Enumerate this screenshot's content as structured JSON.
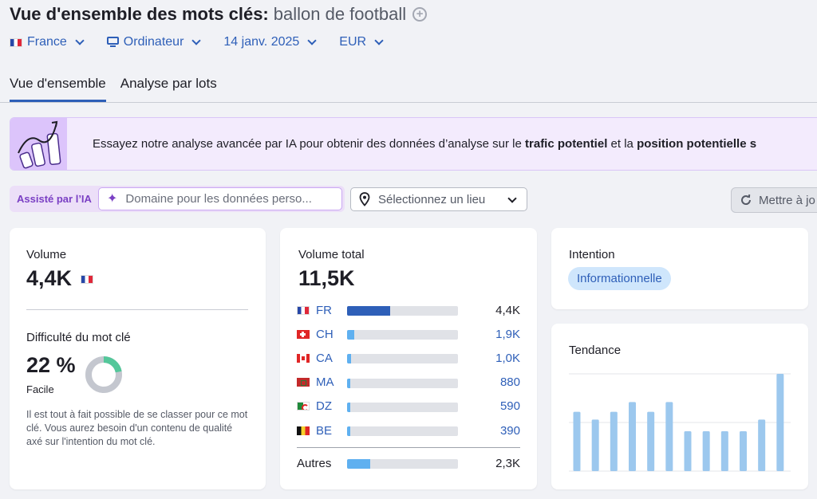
{
  "header": {
    "title": "Vue d'ensemble des mots clés:",
    "keyword": "ballon de football"
  },
  "filters": {
    "country": "France",
    "device": "Ordinateur",
    "date": "14 janv. 2025",
    "currency": "EUR"
  },
  "tabs": [
    {
      "label": "Vue d'ensemble",
      "active": true
    },
    {
      "label": "Analyse par lots",
      "active": false
    }
  ],
  "banner": {
    "text_start": "Essayez notre analyse avancée par IA pour obtenir des données d’analyse sur le ",
    "bold_1": "trafic potentiel",
    "text_mid": " et la ",
    "bold_2": "position potentielle s"
  },
  "ai_bar": {
    "badge": "Assisté par l’IA",
    "domain_placeholder": "Domaine pour les données perso...",
    "location_placeholder": "Sélectionnez un lieu",
    "update_button": "Mettre à jo"
  },
  "volume_card": {
    "label": "Volume",
    "value": "4,4K",
    "difficulty_label": "Difficulté du mot clé",
    "difficulty_value": "22 %",
    "difficulty_percent": 22,
    "difficulty_level": "Facile",
    "description": "Il est tout à fait possible de se classer pour ce mot clé. Vous aurez besoin d'un contenu de qualité axé sur l'intention du mot clé."
  },
  "total_volume_card": {
    "label": "Volume total",
    "value": "11,5K",
    "countries": [
      {
        "code": "FR",
        "flag": "fr",
        "value": "4,4K",
        "share": 1.0
      },
      {
        "code": "CH",
        "flag": "ch",
        "value": "1,9K",
        "share": 0.17
      },
      {
        "code": "CA",
        "flag": "ca",
        "value": "1,0K",
        "share": 0.09
      },
      {
        "code": "MA",
        "flag": "ma",
        "value": "880",
        "share": 0.08
      },
      {
        "code": "DZ",
        "flag": "dz",
        "value": "590",
        "share": 0.06
      },
      {
        "code": "BE",
        "flag": "be",
        "value": "390",
        "share": 0.04
      }
    ],
    "others": {
      "label": "Autres",
      "value": "2,3K",
      "share": 0.21
    }
  },
  "intent_card": {
    "label": "Intention",
    "value": "Informationnelle"
  },
  "trend_card": {
    "label": "Tendance"
  },
  "chart_data": {
    "type": "bar",
    "title": "Tendance",
    "xlabel": "",
    "ylabel": "",
    "values": [
      0.61,
      0.53,
      0.61,
      0.71,
      0.61,
      0.71,
      0.41,
      0.41,
      0.41,
      0.41,
      0.53,
      1.0
    ],
    "ylim": [
      0,
      1
    ],
    "grid": true,
    "color": "#9cc8ee"
  }
}
